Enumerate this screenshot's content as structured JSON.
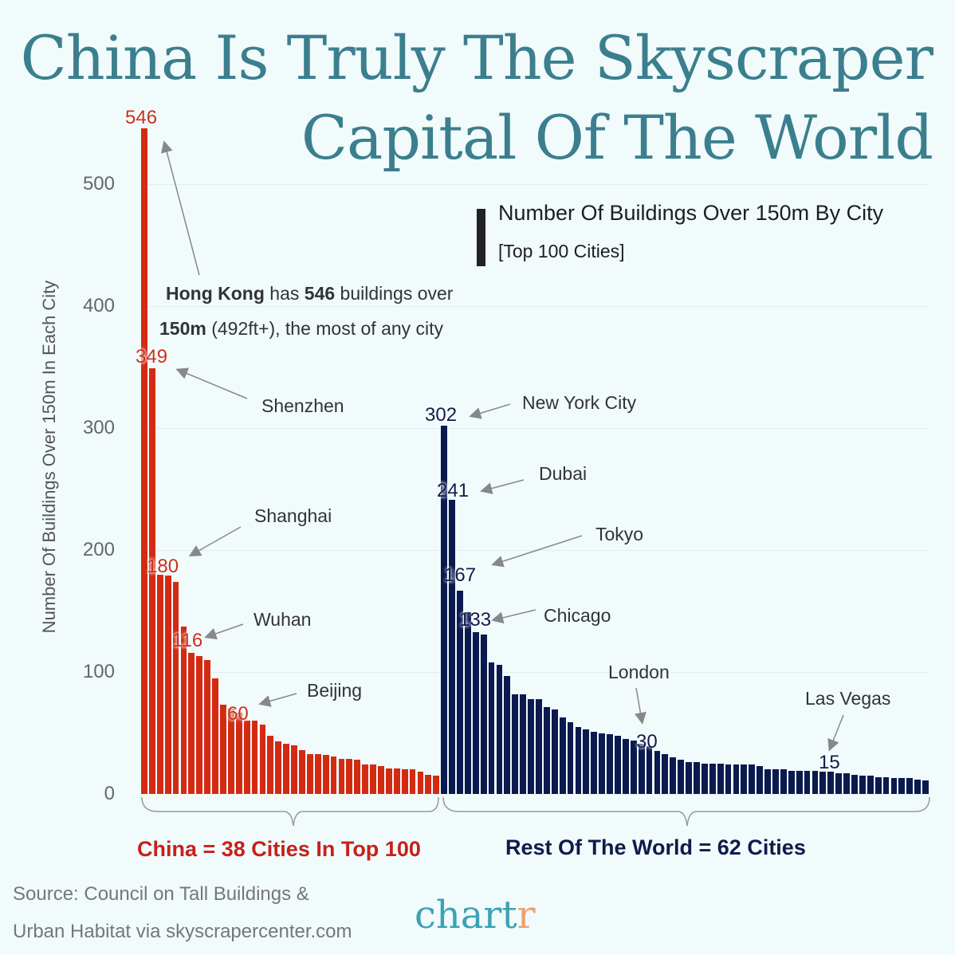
{
  "title": {
    "line1": "China Is Truly The Skyscraper",
    "line2": "Capital Of The World"
  },
  "subtitle": {
    "main": "Number Of Buildings Over 150m By City",
    "sub": "[Top 100 Cities]"
  },
  "colors": {
    "china": "#d42a12",
    "world": "#0b1a4e",
    "title": "#3b7f8e",
    "background": "#f1fbfb"
  },
  "annotations": {
    "hong_kong": {
      "bold1": "Hong Kong",
      "t1": " has ",
      "bold2": "546",
      "t2": " buildings over",
      "line2_bold": "150m",
      "line2": " (492ft+), the most of any city"
    },
    "shenzhen": "Shenzhen",
    "shanghai": "Shanghai",
    "wuhan": "Wuhan",
    "beijing": "Beijing",
    "nyc": "New York City",
    "dubai": "Dubai",
    "tokyo": "Tokyo",
    "chicago": "Chicago",
    "london": "London",
    "las_vegas": "Las Vegas"
  },
  "value_labels": {
    "hk": "546",
    "shenzhen": "349",
    "shanghai": "180",
    "wuhan": "116",
    "beijing": "60",
    "nyc": "302",
    "dubai": "241",
    "tokyo": "167",
    "chicago": "133",
    "london": "30",
    "las_vegas": "15"
  },
  "footer": {
    "china": "China = 38 Cities In Top 100",
    "world": "Rest Of The World = 62 Cities"
  },
  "source": {
    "line1": "Source: Council on Tall Buildings &",
    "line2": "Urban Habitat via skyscrapercenter.com"
  },
  "logo": {
    "main": "chart",
    "accent": "r"
  },
  "chart_data": {
    "type": "bar",
    "title": "China Is Truly The Skyscraper Capital Of The World",
    "subtitle": "Number Of Buildings Over 150m By City [Top 100 Cities]",
    "xlabel": "",
    "ylabel": "Number Of Buildings Over 150m In Each City",
    "ylim": [
      0,
      560
    ],
    "yticks": [
      0,
      100,
      200,
      300,
      400,
      500
    ],
    "grid": true,
    "series": [
      {
        "name": "China = 38 Cities In Top 100",
        "color": "#d42a12",
        "values": [
          546,
          349,
          180,
          179,
          174,
          137,
          116,
          113,
          110,
          95,
          73,
          70,
          67,
          60,
          60,
          57,
          48,
          43,
          41,
          40,
          36,
          33,
          33,
          32,
          31,
          29,
          29,
          28,
          24,
          24,
          23,
          21,
          21,
          20,
          20,
          18,
          16,
          15
        ]
      },
      {
        "name": "Rest Of The World = 62 Cities",
        "color": "#0b1a4e",
        "values": [
          302,
          241,
          167,
          149,
          133,
          131,
          108,
          106,
          97,
          82,
          82,
          78,
          78,
          71,
          69,
          63,
          59,
          55,
          53,
          51,
          50,
          49,
          48,
          45,
          44,
          41,
          39,
          35,
          33,
          30,
          28,
          26,
          26,
          25,
          25,
          25,
          24,
          24,
          24,
          24,
          23,
          20,
          20,
          20,
          19,
          19,
          19,
          19,
          18,
          18,
          17,
          17,
          16,
          15,
          15,
          14,
          14,
          13,
          13,
          13,
          12,
          11
        ]
      }
    ],
    "labelled_points": [
      {
        "city": "Hong Kong",
        "value": 546,
        "series": "China"
      },
      {
        "city": "Shenzhen",
        "value": 349,
        "series": "China"
      },
      {
        "city": "Shanghai",
        "value": 180,
        "series": "China"
      },
      {
        "city": "Wuhan",
        "value": 116,
        "series": "China"
      },
      {
        "city": "Beijing",
        "value": 60,
        "series": "China"
      },
      {
        "city": "New York City",
        "value": 302,
        "series": "World"
      },
      {
        "city": "Dubai",
        "value": 241,
        "series": "World"
      },
      {
        "city": "Tokyo",
        "value": 167,
        "series": "World"
      },
      {
        "city": "Chicago",
        "value": 133,
        "series": "World"
      },
      {
        "city": "London",
        "value": 30,
        "series": "World"
      },
      {
        "city": "Las Vegas",
        "value": 15,
        "series": "World"
      }
    ],
    "source": "Source: Council on Tall Buildings & Urban Habitat via skyscrapercenter.com"
  }
}
